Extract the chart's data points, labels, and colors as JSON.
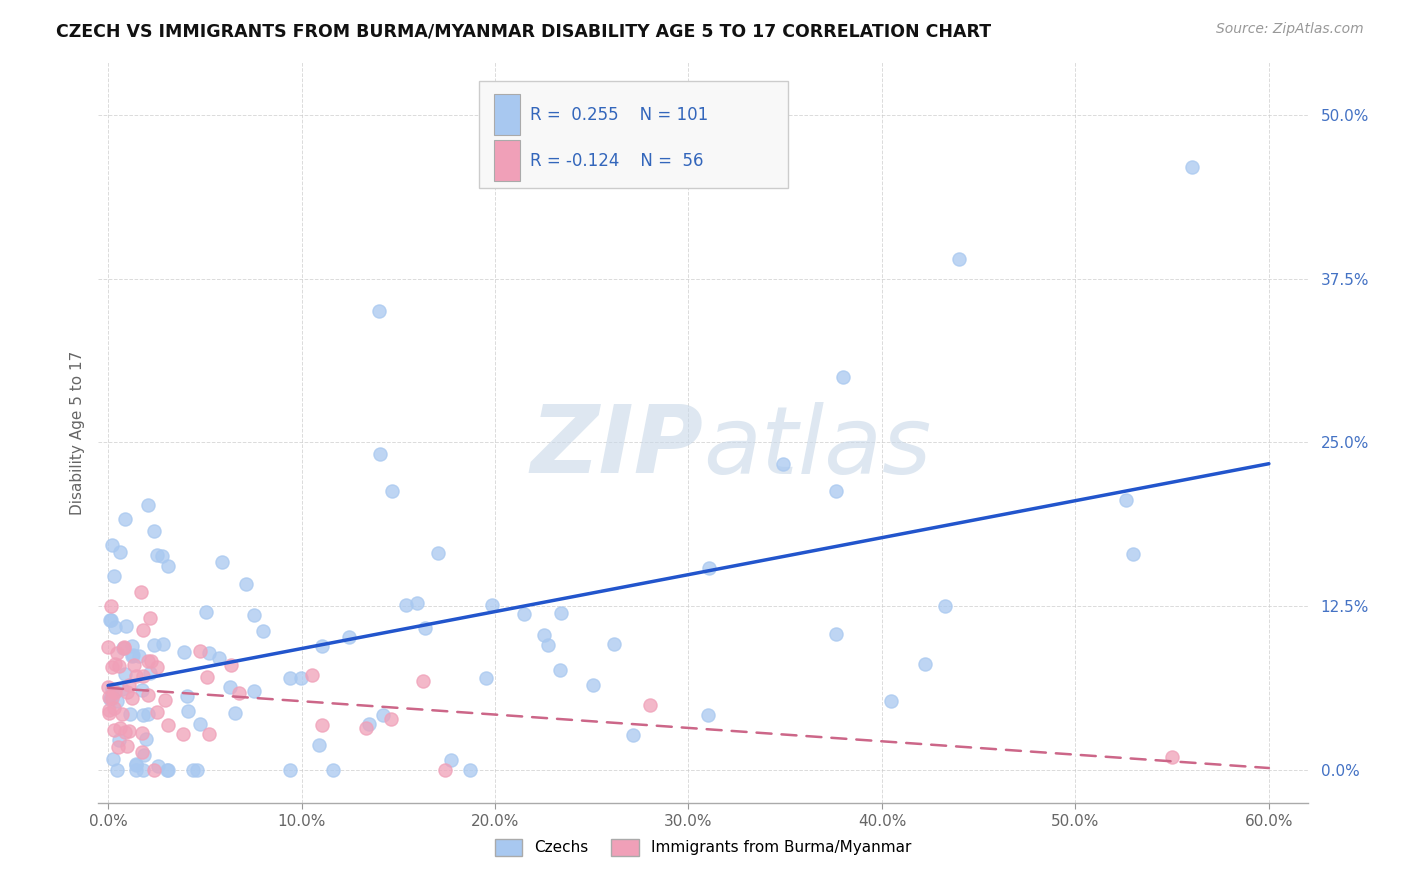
{
  "title": "CZECH VS IMMIGRANTS FROM BURMA/MYANMAR DISABILITY AGE 5 TO 17 CORRELATION CHART",
  "source": "Source: ZipAtlas.com",
  "ylabel": "Disability Age 5 to 17",
  "legend_labels": [
    "Czechs",
    "Immigrants from Burma/Myanmar"
  ],
  "R_czech": 0.255,
  "N_czech": 101,
  "R_burma": -0.124,
  "N_burma": 56,
  "czech_color": "#a8c8f0",
  "burma_color": "#f0a0b8",
  "czech_line_color": "#2255cc",
  "burma_line_color": "#cc6688",
  "watermark_color": "#c8d8e8",
  "grid_color": "#cccccc",
  "tick_color_y": "#4472c4",
  "tick_color_x": "#666666",
  "background": "#ffffff",
  "xlim": [
    -0.005,
    0.62
  ],
  "ylim": [
    -0.025,
    0.54
  ],
  "x_ticks": [
    0.0,
    0.1,
    0.2,
    0.3,
    0.4,
    0.5,
    0.6
  ],
  "y_ticks": [
    0.0,
    0.125,
    0.25,
    0.375,
    0.5
  ]
}
